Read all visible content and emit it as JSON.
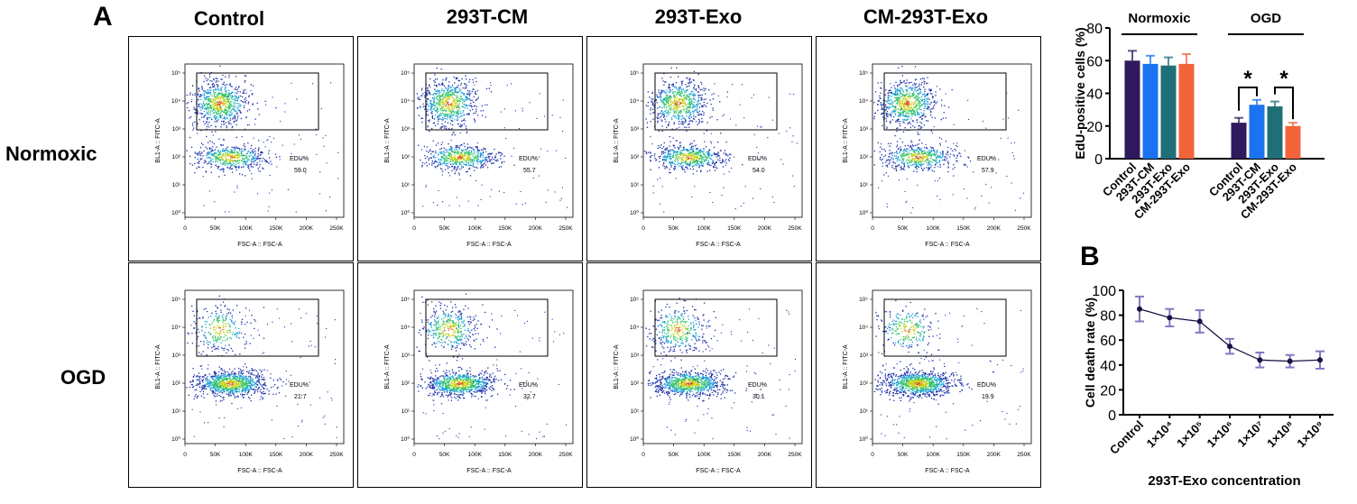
{
  "panel_labels": {
    "a": "A",
    "b": "B"
  },
  "columns": [
    "Control",
    "293T-CM",
    "293T-Exo",
    "CM-293T-Exo"
  ],
  "rows": [
    "Normoxic",
    "OGD"
  ],
  "flow": {
    "x_axis_label": "FSC-A :: FSC-A",
    "x_ticks": [
      "0",
      "50K",
      "100K",
      "150K",
      "200K",
      "250K"
    ],
    "y_ticks": [
      "10⁰",
      "10¹",
      "10²",
      "10³",
      "10⁴",
      "10⁵"
    ],
    "y_axis_label_normoxic": "BL1-A :: FITC-A",
    "y_axis_label_ogd": "BL1-A :: FITC-A",
    "gate_label": "EDU%",
    "values": {
      "Normoxic": [
        "59.0",
        "55.7",
        "54.0",
        "57.9"
      ],
      "OGD": [
        "21.7",
        "32.7",
        "30.1",
        "19.9"
      ]
    }
  },
  "chart_data": [
    {
      "type": "bar",
      "panel": "A",
      "ylabel": "EdU-positive cells (%)",
      "ylim": [
        0,
        80
      ],
      "yticks": [
        0,
        20,
        40,
        60,
        80
      ],
      "groups": [
        "Normoxic",
        "OGD"
      ],
      "categories": [
        "Control",
        "293T-CM",
        "293T-Exo",
        "CM-293T-Exo"
      ],
      "series": [
        {
          "group": "Normoxic",
          "values": [
            60,
            58,
            57,
            58
          ],
          "errors": [
            6,
            5,
            5,
            6
          ]
        },
        {
          "group": "OGD",
          "values": [
            22,
            33,
            32,
            20
          ],
          "errors": [
            3,
            3,
            3,
            2
          ]
        }
      ],
      "significance": [
        "*",
        "*"
      ],
      "colors": [
        "#2e1a5c",
        "#1a73f0",
        "#1f6f78",
        "#f2643a"
      ]
    },
    {
      "type": "line",
      "panel": "B",
      "xlabel": "293T-Exo concentration",
      "ylabel": "Cell death rate (%)",
      "ylim": [
        0,
        100
      ],
      "yticks": [
        0,
        20,
        40,
        60,
        80,
        100
      ],
      "categories": [
        "Control",
        "1×10⁴",
        "1×10⁵",
        "1×10⁶",
        "1×10⁷",
        "1×10⁸",
        "1×10⁹"
      ],
      "values": [
        85,
        78,
        75,
        55,
        44,
        43,
        44
      ],
      "errors": [
        10,
        7,
        9,
        6,
        6,
        5,
        7
      ],
      "line_color": "#1c1245",
      "marker_color": "#8a74c4"
    }
  ]
}
